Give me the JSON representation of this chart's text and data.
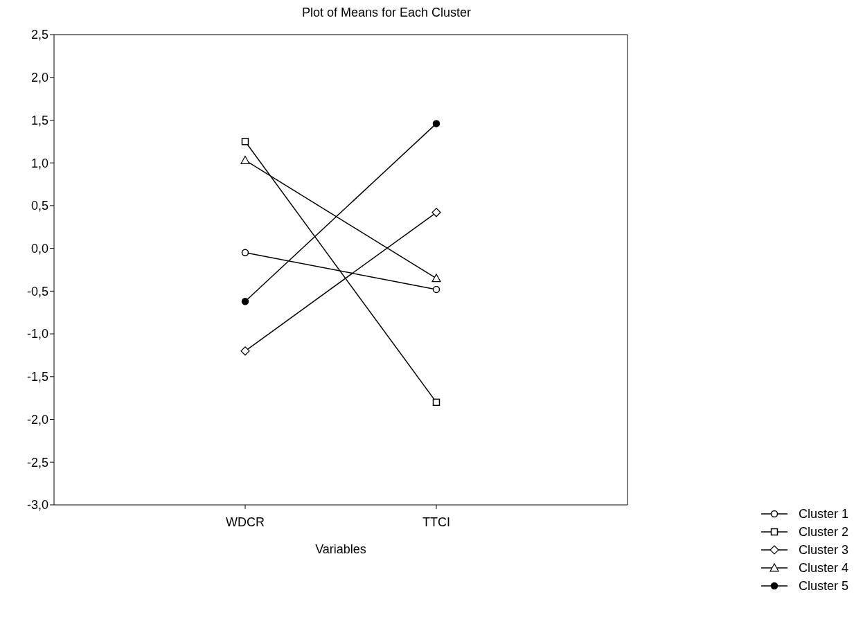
{
  "chart_data": {
    "type": "line",
    "title": "Plot of Means for Each Cluster",
    "xlabel": "Variables",
    "categories": [
      "WDCR",
      "TTCI"
    ],
    "ylim": [
      -3.0,
      2.5
    ],
    "yticks": [
      {
        "value": -3.0,
        "label": "-3,0"
      },
      {
        "value": -2.5,
        "label": "-2,5"
      },
      {
        "value": -2.0,
        "label": "-2,0"
      },
      {
        "value": -1.5,
        "label": "-1,5"
      },
      {
        "value": -1.0,
        "label": "-1,0"
      },
      {
        "value": -0.5,
        "label": "-0,5"
      },
      {
        "value": 0.0,
        "label": "0,0"
      },
      {
        "value": 0.5,
        "label": "0,5"
      },
      {
        "value": 1.0,
        "label": "1,0"
      },
      {
        "value": 1.5,
        "label": "1,5"
      },
      {
        "value": 2.0,
        "label": "2,0"
      },
      {
        "value": 2.5,
        "label": "2,5"
      }
    ],
    "grid": false,
    "legend": "bottom right",
    "line_style": "solid",
    "series": [
      {
        "name": "Cluster  1",
        "color": "#000000",
        "marker": "circle",
        "values": [
          -0.05,
          -0.48
        ]
      },
      {
        "name": "Cluster  2",
        "color": "#000000",
        "marker": "square",
        "values": [
          1.25,
          -1.8
        ]
      },
      {
        "name": "Cluster  3",
        "color": "#000000",
        "marker": "diamond",
        "values": [
          -1.2,
          0.42
        ]
      },
      {
        "name": "Cluster  4",
        "color": "#000000",
        "marker": "triangle",
        "values": [
          1.03,
          -0.35
        ]
      },
      {
        "name": "Cluster  5",
        "color": "#000000",
        "marker": "circle",
        "values": [
          -0.62,
          1.46
        ]
      }
    ]
  }
}
